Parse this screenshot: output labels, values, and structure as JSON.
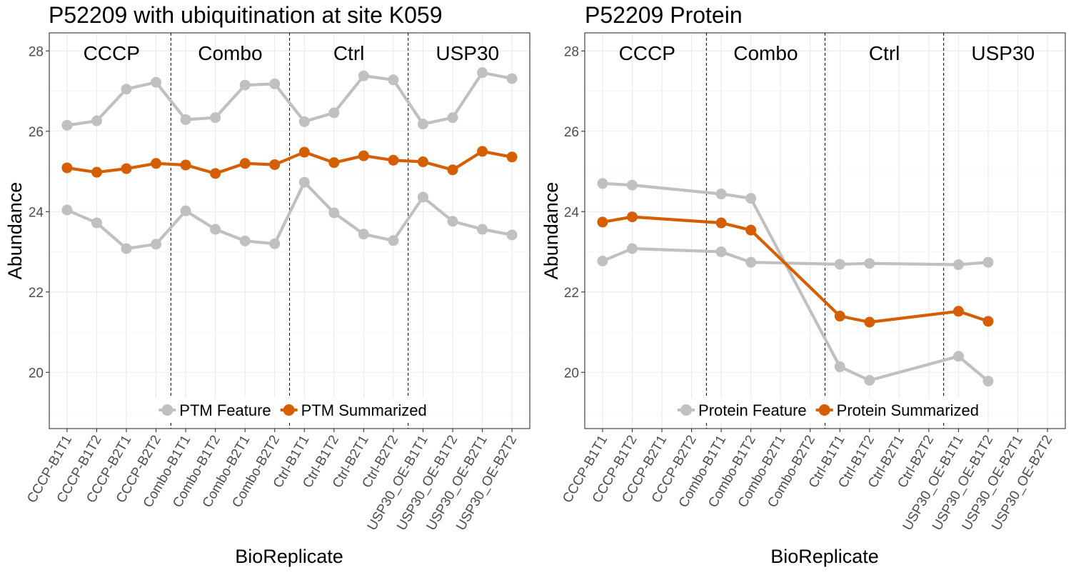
{
  "chart_data": [
    {
      "type": "line",
      "title": "P52209 with ubiquitination at site K059",
      "xlabel": "BioReplicate",
      "ylabel": "Abundance",
      "ylim": [
        18.6,
        28.45
      ],
      "yticks": [
        20,
        22,
        24,
        26,
        28
      ],
      "grid": true,
      "legend_position": "bottom-inside",
      "categories": [
        "CCCP-B1T1",
        "CCCP-B1T2",
        "CCCP-B2T1",
        "CCCP-B2T2",
        "Combo-B1T1",
        "Combo-B1T2",
        "Combo-B2T1",
        "Combo-B2T2",
        "Ctrl-B1T1",
        "Ctrl-B1T2",
        "Ctrl-B2T1",
        "Ctrl-B2T2",
        "USP30_OE-B1T1",
        "USP30_OE-B1T2",
        "USP30_OE-B2T1",
        "USP30_OE-B2T2"
      ],
      "groups": [
        {
          "label": "CCCP",
          "start": 0,
          "end": 3
        },
        {
          "label": "Combo",
          "start": 4,
          "end": 7
        },
        {
          "label": "Ctrl",
          "start": 8,
          "end": 11
        },
        {
          "label": "USP30",
          "start": 12,
          "end": 15
        }
      ],
      "legend": [
        {
          "label": "PTM Feature",
          "color": "#c0c0c0"
        },
        {
          "label": "PTM Summarized",
          "color": "#d55e00"
        }
      ],
      "series": [
        {
          "role": "feature",
          "color": "#c0c0c0",
          "values": [
            26.15,
            26.26,
            27.05,
            27.22,
            26.29,
            26.34,
            27.15,
            27.18,
            26.24,
            26.46,
            27.38,
            27.28,
            26.18,
            26.34,
            27.46,
            27.31
          ]
        },
        {
          "role": "feature",
          "color": "#c0c0c0",
          "values": [
            24.04,
            23.72,
            23.08,
            23.19,
            24.02,
            23.56,
            23.27,
            23.2,
            24.73,
            23.97,
            23.44,
            23.28,
            24.36,
            23.76,
            23.56,
            23.42
          ]
        },
        {
          "role": "summarized",
          "color": "#d55e00",
          "values": [
            25.09,
            24.98,
            25.07,
            25.2,
            25.16,
            24.95,
            25.2,
            25.17,
            25.48,
            25.22,
            25.39,
            25.28,
            25.24,
            25.04,
            25.5,
            25.36
          ]
        }
      ]
    },
    {
      "type": "line",
      "title": "P52209 Protein",
      "xlabel": "BioReplicate",
      "ylabel": "Abundance",
      "ylim": [
        18.6,
        28.45
      ],
      "yticks": [
        20,
        22,
        24,
        26,
        28
      ],
      "grid": true,
      "legend_position": "bottom-inside",
      "categories": [
        "CCCP-B1T1",
        "CCCP-B1T2",
        "CCCP-B2T1",
        "CCCP-B2T2",
        "Combo-B1T1",
        "Combo-B1T2",
        "Combo-B2T1",
        "Combo-B2T2",
        "Ctrl-B1T1",
        "Ctrl-B1T2",
        "Ctrl-B2T1",
        "Ctrl-B2T2",
        "USP30_OE-B1T1",
        "USP30_OE-B1T2",
        "USP30_OE-B2T1",
        "USP30_OE-B2T2"
      ],
      "groups": [
        {
          "label": "CCCP",
          "start": 0,
          "end": 3
        },
        {
          "label": "Combo",
          "start": 4,
          "end": 7
        },
        {
          "label": "Ctrl",
          "start": 8,
          "end": 11
        },
        {
          "label": "USP30",
          "start": 12,
          "end": 15
        }
      ],
      "legend": [
        {
          "label": "Protein Feature",
          "color": "#c0c0c0"
        },
        {
          "label": "Protein Summarized",
          "color": "#d55e00"
        }
      ],
      "series": [
        {
          "role": "feature",
          "color": "#c0c0c0",
          "values": [
            24.7,
            24.66,
            null,
            null,
            24.44,
            24.33,
            null,
            null,
            20.14,
            19.8,
            null,
            null,
            20.4,
            19.78,
            null,
            null
          ]
        },
        {
          "role": "feature",
          "color": "#c0c0c0",
          "values": [
            22.77,
            23.08,
            null,
            null,
            23.0,
            22.74,
            null,
            null,
            22.69,
            22.71,
            null,
            null,
            22.68,
            22.74,
            null,
            null
          ]
        },
        {
          "role": "summarized",
          "color": "#d55e00",
          "values": [
            23.74,
            23.87,
            null,
            null,
            23.72,
            23.54,
            null,
            null,
            21.4,
            21.25,
            null,
            null,
            21.52,
            21.27,
            null,
            null
          ]
        }
      ]
    }
  ]
}
